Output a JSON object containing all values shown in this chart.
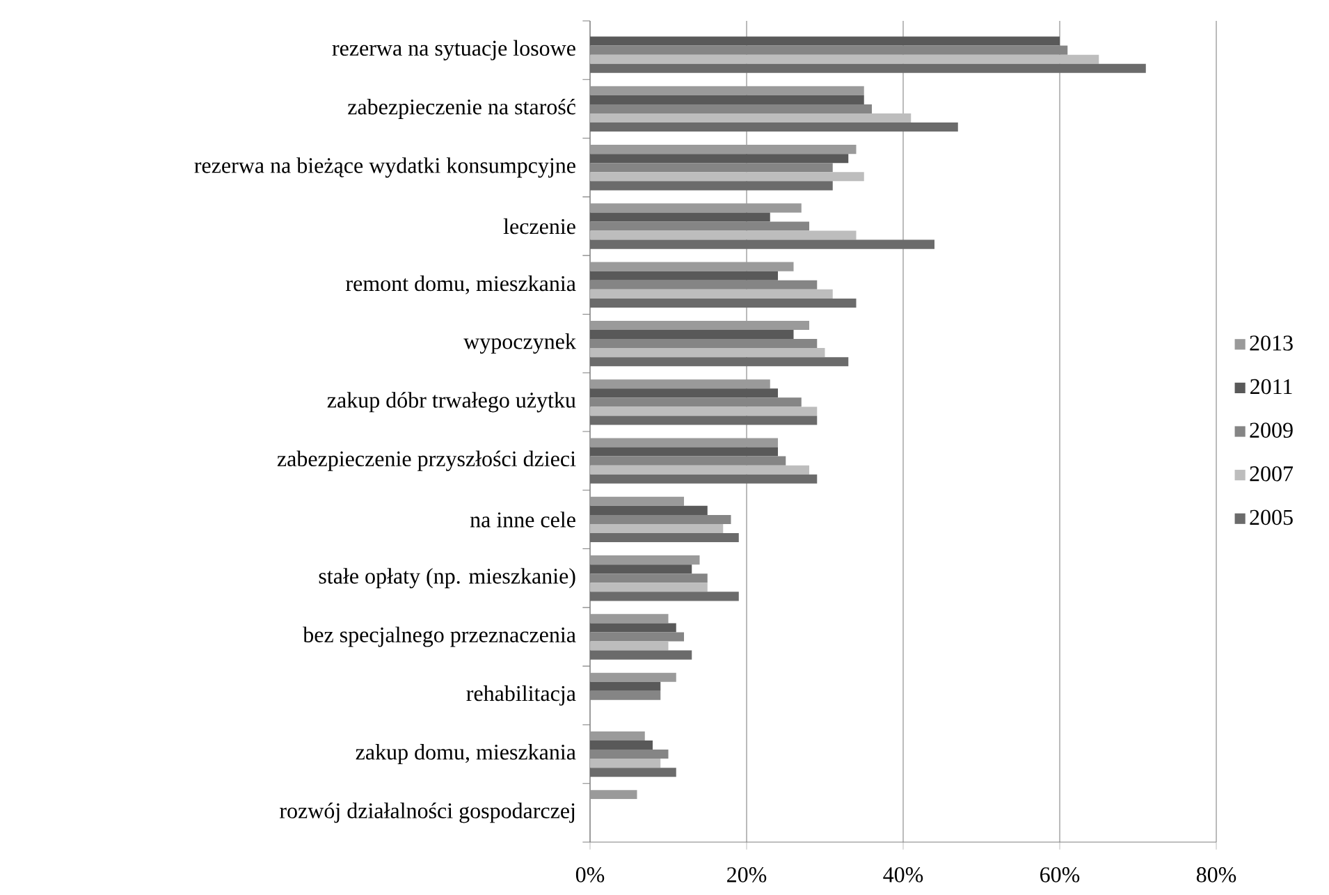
{
  "chart_data": {
    "type": "bar",
    "orientation": "horizontal",
    "categories": [
      "rezerwa na sytuacje losowe",
      "zabezpieczenie na starość",
      "rezerwa na bieżące wydatki konsumpcyjne",
      "leczenie",
      "remont domu, mieszkania",
      "wypoczynek",
      "zakup dóbr trwałego użytku",
      "zabezpieczenie przyszłości dzieci",
      "na inne cele",
      "stałe opłaty (np. mieszkanie)",
      "bez specjalnego przeznaczenia",
      "rehabilitacja",
      "zakup domu, mieszkania",
      "rozwój działalności gospodarczej"
    ],
    "series": [
      {
        "name": "2013",
        "color": "#9a9a9a",
        "values": [
          null,
          35,
          34,
          27,
          26,
          28,
          23,
          24,
          12,
          14,
          10,
          11,
          7,
          6
        ]
      },
      {
        "name": "2011",
        "color": "#595959",
        "values": [
          60,
          35,
          33,
          23,
          24,
          26,
          24,
          24,
          15,
          13,
          11,
          9,
          8,
          null
        ]
      },
      {
        "name": "2009",
        "color": "#858585",
        "values": [
          61,
          36,
          31,
          28,
          29,
          29,
          27,
          25,
          18,
          15,
          12,
          9,
          10,
          null
        ]
      },
      {
        "name": "2007",
        "color": "#bdbdbd",
        "values": [
          65,
          41,
          35,
          34,
          31,
          30,
          29,
          28,
          17,
          15,
          10,
          null,
          9,
          null
        ]
      },
      {
        "name": "2005",
        "color": "#6b6b6b",
        "values": [
          71,
          47,
          31,
          44,
          34,
          33,
          29,
          29,
          19,
          19,
          13,
          null,
          11,
          null
        ]
      }
    ],
    "xlim": [
      0,
      80
    ],
    "xticks": [
      {
        "value": 0,
        "label": "0%"
      },
      {
        "value": 20,
        "label": "20%"
      },
      {
        "value": 40,
        "label": "40%"
      },
      {
        "value": 60,
        "label": "60%"
      },
      {
        "value": 80,
        "label": "80%"
      }
    ],
    "grid": "x",
    "legend": "right"
  }
}
